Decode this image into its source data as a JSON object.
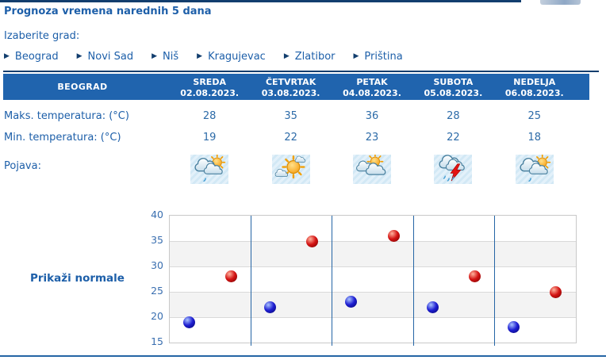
{
  "page": {
    "title": "Prognoza vremena narednih 5 dana",
    "choose_city_label": "Izaberite grad:"
  },
  "cities": [
    {
      "label": "Beograd"
    },
    {
      "label": "Novi Sad"
    },
    {
      "label": "Niš"
    },
    {
      "label": "Kragujevac"
    },
    {
      "label": "Zlatibor"
    },
    {
      "label": "Priština"
    }
  ],
  "table": {
    "city_header": "BEOGRAD",
    "row_labels": {
      "max": "Maks. temperatura: (°C)",
      "min": "Min. temperatura: (°C)",
      "phenomenon": "Pojava:"
    },
    "days": [
      {
        "name": "SREDA",
        "date": "02.08.2023.",
        "max": "28",
        "min": "19",
        "icon": "cloud-sun-light-rain"
      },
      {
        "name": "ČETVRTAK",
        "date": "03.08.2023.",
        "max": "35",
        "min": "22",
        "icon": "sun-clouds"
      },
      {
        "name": "PETAK",
        "date": "04.08.2023.",
        "max": "36",
        "min": "23",
        "icon": "clouds-sun"
      },
      {
        "name": "SUBOTA",
        "date": "05.08.2023.",
        "max": "28",
        "min": "22",
        "icon": "thunderstorm-rain"
      },
      {
        "name": "NEDELJA",
        "date": "06.08.2023.",
        "max": "25",
        "min": "18",
        "icon": "cloud-sun-light-rain"
      }
    ]
  },
  "normals_button": "Prikaži normale",
  "chart_data": {
    "type": "scatter",
    "categories": [
      "SREDA",
      "ČETVRTAK",
      "PETAK",
      "SUBOTA",
      "NEDELJA"
    ],
    "series": [
      {
        "name": "Min. temperatura (°C)",
        "color": "#1e1ed2",
        "values": [
          19,
          22,
          23,
          22,
          18
        ]
      },
      {
        "name": "Maks. temperatura (°C)",
        "color": "#d41414",
        "values": [
          28,
          35,
          36,
          28,
          25
        ]
      }
    ],
    "ylim": [
      15,
      40
    ],
    "yticks": [
      15,
      20,
      25,
      30,
      35,
      40
    ],
    "grid": true,
    "shaded_bands": [
      [
        20,
        25
      ],
      [
        30,
        35
      ]
    ],
    "legend": "none"
  },
  "colors": {
    "accent_text": "#1d5fa9",
    "value_text": "#2d6ba8",
    "navy_line": "#123e6e",
    "header_bar": "#2064ae",
    "header_text": "#ffffff",
    "icon_bg": "#d9ecf7",
    "chart_band": "#f3f3f3",
    "chart_grid": "#d9d9d9",
    "chart_border": "#c9c9c9",
    "day_separator": "#2565a5",
    "point_min": "#1e1ed2",
    "point_max": "#d41414",
    "bottom_line": "#2565a5",
    "tick_text": "#3a6fb0"
  }
}
